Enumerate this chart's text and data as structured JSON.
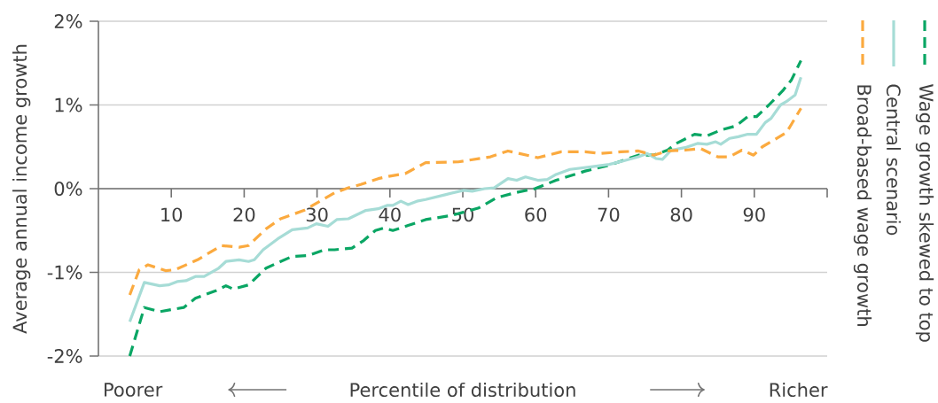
{
  "chart_data": {
    "type": "line",
    "ylabel": "Average annual income growth",
    "xlabel": "Percentile of distribution",
    "annotations": [
      "Poorer",
      "Richer"
    ],
    "xlim": [
      0,
      100
    ],
    "xticks": [
      10,
      20,
      30,
      40,
      50,
      60,
      70,
      80,
      90,
      {
        "value": 100,
        "label": null
      }
    ],
    "ylim": [
      -2,
      2
    ],
    "yticks": [
      {
        "value": -2,
        "label": "-2%"
      },
      {
        "value": -1,
        "label": "-1%"
      },
      {
        "value": 0,
        "label": "0%"
      },
      {
        "value": 1,
        "label": "1%"
      },
      {
        "value": 2,
        "label": "2%"
      }
    ],
    "grid": "y",
    "legend": "right",
    "series": [
      {
        "name": "Wage growth skewed to top",
        "color": "#0aa664",
        "line_style": "dashed",
        "x": [
          4.3,
          6.3,
          8.4,
          11.7,
          13.3,
          16.1,
          17.5,
          18.5,
          20.6,
          23.0,
          25.0,
          26.6,
          28.7,
          31.1,
          32.4,
          34.8,
          36.4,
          38.0,
          39.2,
          40.4,
          42.5,
          44.9,
          48.5,
          52.2,
          54.6,
          57.1,
          59.9,
          62.8,
          66.8,
          70.1,
          74.1,
          76.2,
          78.1,
          79.3,
          81.8,
          83.5,
          85.4,
          87.5,
          89.1,
          90.3,
          92.0,
          93.9,
          95.1,
          96.4
        ],
        "values": [
          -2.0,
          -1.42,
          -1.47,
          -1.42,
          -1.31,
          -1.22,
          -1.16,
          -1.2,
          -1.15,
          -0.95,
          -0.87,
          -0.81,
          -0.8,
          -0.73,
          -0.73,
          -0.71,
          -0.62,
          -0.5,
          -0.47,
          -0.5,
          -0.44,
          -0.37,
          -0.32,
          -0.23,
          -0.11,
          -0.05,
          0.0,
          0.1,
          0.21,
          0.28,
          0.4,
          0.4,
          0.46,
          0.54,
          0.65,
          0.63,
          0.7,
          0.75,
          0.86,
          0.86,
          1.0,
          1.17,
          1.3,
          1.53
        ]
      },
      {
        "name": "Central scenario",
        "color": "#a6dcd6",
        "line_style": "solid",
        "x": [
          4.3,
          6.3,
          8.4,
          9.6,
          10.8,
          12.0,
          13.3,
          14.5,
          16.5,
          17.5,
          19.3,
          20.6,
          21.4,
          22.6,
          24.6,
          26.6,
          28.7,
          29.9,
          31.5,
          32.7,
          34.3,
          36.7,
          38.4,
          39.6,
          40.4,
          41.5,
          42.5,
          43.7,
          44.9,
          47.7,
          50.1,
          51.3,
          53.0,
          54.3,
          56.2,
          57.4,
          58.6,
          60.3,
          61.6,
          62.8,
          64.7,
          67.6,
          70.1,
          72.0,
          74.1,
          75.3,
          76.5,
          77.4,
          78.6,
          80.5,
          82.2,
          83.5,
          84.7,
          85.4,
          86.6,
          87.8,
          89.1,
          90.3,
          91.5,
          92.3,
          93.6,
          94.4,
          95.6,
          96.4
        ],
        "values": [
          -1.59,
          -1.12,
          -1.16,
          -1.15,
          -1.11,
          -1.1,
          -1.05,
          -1.05,
          -0.95,
          -0.87,
          -0.85,
          -0.87,
          -0.85,
          -0.73,
          -0.6,
          -0.49,
          -0.47,
          -0.42,
          -0.45,
          -0.37,
          -0.36,
          -0.26,
          -0.24,
          -0.2,
          -0.2,
          -0.15,
          -0.19,
          -0.15,
          -0.13,
          -0.07,
          -0.02,
          -0.03,
          0.0,
          0.01,
          0.12,
          0.1,
          0.14,
          0.1,
          0.11,
          0.17,
          0.23,
          0.26,
          0.29,
          0.33,
          0.38,
          0.42,
          0.36,
          0.35,
          0.46,
          0.49,
          0.54,
          0.53,
          0.56,
          0.53,
          0.6,
          0.62,
          0.65,
          0.65,
          0.79,
          0.84,
          1.0,
          1.04,
          1.12,
          1.33
        ]
      },
      {
        "name": "Broad-based wage growth",
        "color": "#fbaa3f",
        "line_style": "dashed",
        "x": [
          4.3,
          5.6,
          6.8,
          9.2,
          10.5,
          13.6,
          16.9,
          19.3,
          20.6,
          23.0,
          25.0,
          26.6,
          28.2,
          29.4,
          32.4,
          34.3,
          36.0,
          38.4,
          40.0,
          42.1,
          44.9,
          49.4,
          53.8,
          56.2,
          60.3,
          63.5,
          66.8,
          68.9,
          71.7,
          74.1,
          76.2,
          78.1,
          80.5,
          82.6,
          85.0,
          86.6,
          88.3,
          89.9,
          91.1,
          92.7,
          94.4,
          95.1,
          96.4
        ],
        "values": [
          -1.27,
          -0.97,
          -0.91,
          -0.98,
          -0.97,
          -0.85,
          -0.68,
          -0.7,
          -0.68,
          -0.48,
          -0.36,
          -0.31,
          -0.26,
          -0.2,
          -0.05,
          0.01,
          0.05,
          0.12,
          0.15,
          0.18,
          0.31,
          0.32,
          0.38,
          0.45,
          0.37,
          0.44,
          0.44,
          0.42,
          0.44,
          0.45,
          0.4,
          0.45,
          0.46,
          0.48,
          0.38,
          0.38,
          0.46,
          0.4,
          0.5,
          0.58,
          0.67,
          0.77,
          0.96
        ]
      }
    ]
  }
}
